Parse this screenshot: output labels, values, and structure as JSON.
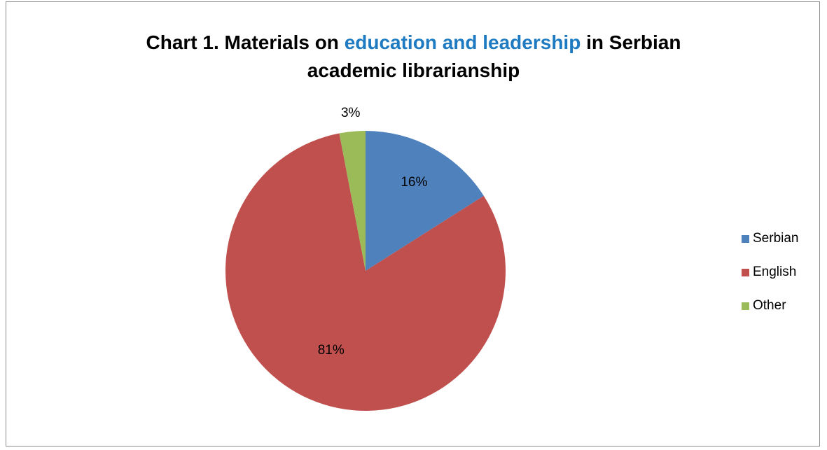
{
  "chart_data": {
    "type": "pie",
    "title": {
      "line1_pre": "Chart 1. Materials on ",
      "line1_highlight": "education and leadership",
      "line1_post": " in Serbian",
      "line2": "academic librarianship"
    },
    "slices": [
      {
        "label": "Serbian",
        "value": 16,
        "data_label": "16%",
        "color": "#4f81bd"
      },
      {
        "label": "English",
        "value": 81,
        "data_label": "81%",
        "color": "#c0504d"
      },
      {
        "label": "Other",
        "value": 3,
        "data_label": "3%",
        "color": "#9bbb59"
      }
    ],
    "legend_position": "right"
  },
  "colors": {
    "title_highlight": "#1f7bc1",
    "frame_border": "#8c8c8c"
  }
}
